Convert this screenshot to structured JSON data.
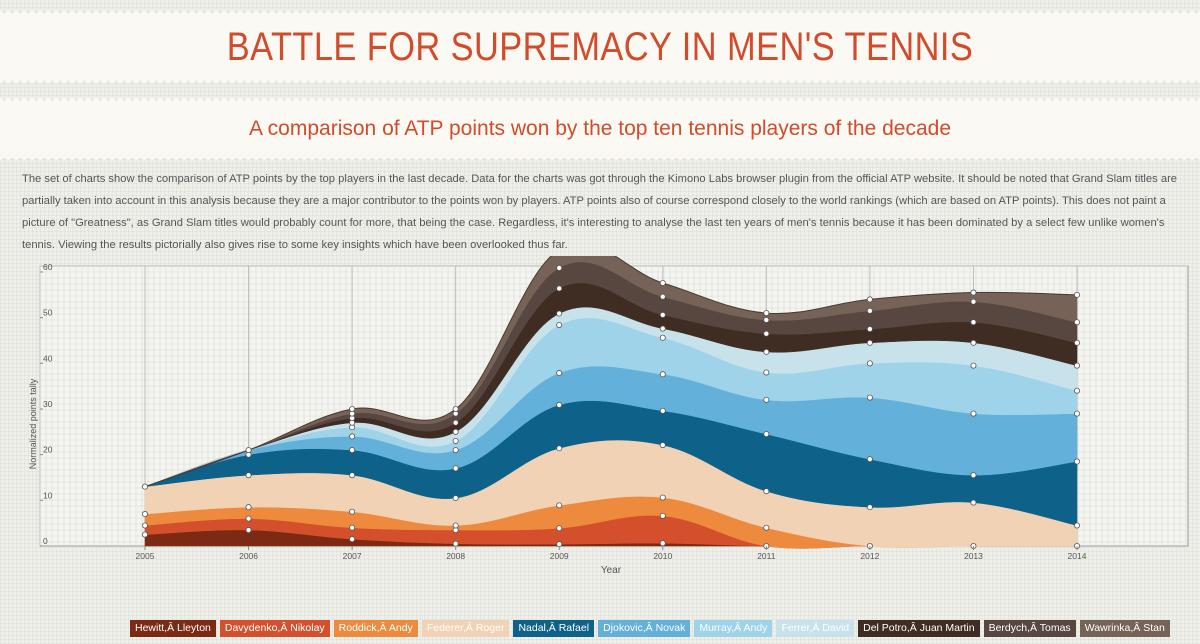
{
  "header": {
    "title": "BATTLE FOR SUPREMACY IN  MEN'S TENNIS",
    "subtitle": "A comparison of ATP points won by the top ten tennis players of the decade"
  },
  "intro_text": "The set of charts show the comparison of ATP points by the top players in the last decade. Data for the charts was got through the Kimono Labs browser plugin from the official ATP website.  It should be noted that Grand Slam titles are partially taken into account in this analysis because they are a major contributor to the points won by players. ATP points also of course correspond closely to the world rankings (which are based on ATP points). This does not paint a picture of \"Greatness\", as Grand Slam titles would probably count for more, that being the case. Regardless, it's interesting to analyse the last ten years of men's tennis because it has been dominated by a select few unlike women's tennis. Viewing the results pictorially also gives rise to some key insights which have been overlooked thus far.",
  "chart_data": {
    "type": "area",
    "stacked": true,
    "smooth": true,
    "title": "",
    "xlabel": "Year",
    "ylabel": "Normalized points tally",
    "x": [
      2005,
      2006,
      2007,
      2008,
      2009,
      2010,
      2011,
      2012,
      2013,
      2014
    ],
    "xticks": [
      "2005",
      "2006",
      "2007",
      "2008",
      "2009",
      "2010",
      "2011",
      "2012",
      "2013",
      "2014"
    ],
    "yticks": [
      "0",
      "10",
      "20",
      "30",
      "40",
      "50",
      "60"
    ],
    "ylim": [
      0,
      60
    ],
    "grid": true,
    "series": [
      {
        "name": "Hewitt,Â Lleyton",
        "color": "#7d2a14",
        "values": [
          2.5,
          3.5,
          1.5,
          0.5,
          0.4,
          0.6,
          0,
          0,
          0,
          0
        ]
      },
      {
        "name": "Davydenko,Â Nikolay",
        "color": "#d4502c",
        "values": [
          2,
          2.5,
          2.5,
          3,
          3.5,
          6,
          0,
          0,
          0,
          0
        ]
      },
      {
        "name": "Roddick,Â Andy",
        "color": "#ee8a3e",
        "values": [
          2.5,
          2.5,
          3.5,
          1,
          5,
          4,
          4,
          0,
          0,
          0
        ]
      },
      {
        "name": "Federer,Â Roger",
        "color": "#f2d2b4",
        "values": [
          6,
          7,
          8,
          6,
          12.5,
          11.5,
          8,
          8.5,
          9.5,
          4.5
        ]
      },
      {
        "name": "Nadal,Â Rafael",
        "color": "#0e6189",
        "values": [
          0,
          4.5,
          5.5,
          6.5,
          9.5,
          7.5,
          12.5,
          10.5,
          6,
          14
        ]
      },
      {
        "name": "Djokovic,Â Novak",
        "color": "#63b0da",
        "values": [
          0,
          1,
          3,
          4,
          7,
          8,
          7.5,
          13.5,
          13.5,
          10.5
        ]
      },
      {
        "name": "Murray,Â Andy",
        "color": "#9ed3e9",
        "values": [
          0,
          0,
          2,
          2,
          10.5,
          8,
          6,
          7.5,
          10.5,
          5
        ]
      },
      {
        "name": "Ferrer,Â David",
        "color": "#c8e2ec",
        "values": [
          0,
          0,
          1,
          2,
          2.5,
          2,
          4.5,
          4.5,
          5,
          5.5
        ]
      },
      {
        "name": "Del Potro,Â Juan Martin",
        "color": "#3f2c22",
        "values": [
          0,
          0,
          1,
          2,
          5.5,
          3,
          4,
          3,
          4.5,
          5
        ]
      },
      {
        "name": "Berdych,Â Tomas",
        "color": "#584740",
        "values": [
          0,
          0,
          1,
          2,
          4.5,
          4,
          3,
          4,
          4.5,
          4.5
        ]
      },
      {
        "name": "Wawrinka,Â Stan",
        "color": "#766257",
        "values": [
          0,
          0,
          1,
          1,
          4,
          3,
          1.5,
          2.5,
          2,
          6
        ]
      }
    ]
  }
}
